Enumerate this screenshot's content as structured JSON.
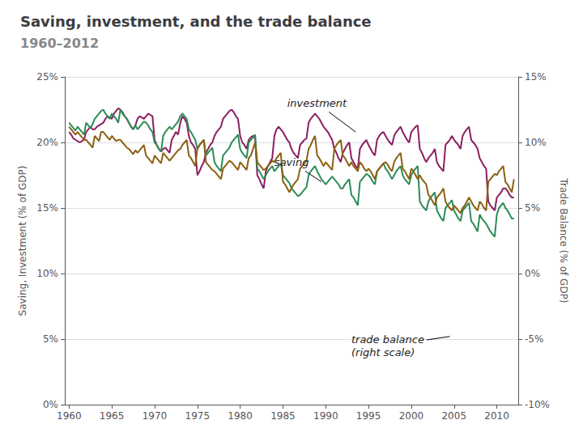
{
  "chart_data": {
    "type": "line",
    "title": "Saving, investment, and the trade balance",
    "subtitle": "1960–2012",
    "ylabel": "Saving, Investment (% of GDP)",
    "y2label": "Trade Balance (% of GDP)",
    "xlim": [
      1959.5,
      2012.5
    ],
    "xticks": [
      1960,
      1965,
      1970,
      1975,
      1980,
      1985,
      1990,
      1995,
      2000,
      2005,
      2010
    ],
    "ylim": [
      0,
      25
    ],
    "yticks": [
      {
        "value": 0,
        "label": "0%"
      },
      {
        "value": 5,
        "label": "5%"
      },
      {
        "value": 10,
        "label": "10%"
      },
      {
        "value": 15,
        "label": "15%"
      },
      {
        "value": 20,
        "label": "20%"
      },
      {
        "value": 25,
        "label": "25%"
      }
    ],
    "y2lim": [
      -10,
      15
    ],
    "y2ticks": [
      {
        "value": -10,
        "label": "-10%"
      },
      {
        "value": -5,
        "label": "-5%"
      },
      {
        "value": 0,
        "label": "0%"
      },
      {
        "value": 5,
        "label": "5%"
      },
      {
        "value": 10,
        "label": "10%"
      },
      {
        "value": 15,
        "label": "15%"
      }
    ],
    "grid": true,
    "annotations": [
      {
        "text": "investment",
        "xy": [
          1993.5,
          20.8
        ],
        "xytext": [
          1985.5,
          23.0
        ]
      },
      {
        "text": "saving",
        "xy": [
          1989.5,
          17.0
        ],
        "xytext": [
          1984.0,
          18.5
        ]
      },
      {
        "text": "trade balance\n(right scale)",
        "xy": [
          2004.5,
          5.2
        ],
        "xytext": [
          1993.0,
          4.5
        ]
      }
    ],
    "x": [
      1960,
      1960.25,
      1960.5,
      1960.75,
      1961,
      1961.25,
      1961.5,
      1961.75,
      1962,
      1962.25,
      1962.5,
      1962.75,
      1963,
      1963.25,
      1963.5,
      1963.75,
      1964,
      1964.25,
      1964.5,
      1964.75,
      1965,
      1965.25,
      1965.5,
      1965.75,
      1966,
      1966.25,
      1966.5,
      1966.75,
      1967,
      1967.25,
      1967.5,
      1967.75,
      1968,
      1968.25,
      1968.5,
      1968.75,
      1969,
      1969.25,
      1969.5,
      1969.75,
      1970,
      1970.25,
      1970.5,
      1970.75,
      1971,
      1971.25,
      1971.5,
      1971.75,
      1972,
      1972.25,
      1972.5,
      1972.75,
      1973,
      1973.25,
      1973.5,
      1973.75,
      1974,
      1974.25,
      1974.5,
      1974.75,
      1975,
      1975.25,
      1975.5,
      1975.75,
      1976,
      1976.25,
      1976.5,
      1976.75,
      1977,
      1977.25,
      1977.5,
      1977.75,
      1978,
      1978.25,
      1978.5,
      1978.75,
      1979,
      1979.25,
      1979.5,
      1979.75,
      1980,
      1980.25,
      1980.5,
      1980.75,
      1981,
      1981.25,
      1981.5,
      1981.75,
      1982,
      1982.25,
      1982.5,
      1982.75,
      1983,
      1983.25,
      1983.5,
      1983.75,
      1984,
      1984.25,
      1984.5,
      1984.75,
      1985,
      1985.25,
      1985.5,
      1985.75,
      1986,
      1986.25,
      1986.5,
      1986.75,
      1987,
      1987.25,
      1987.5,
      1987.75,
      1988,
      1988.25,
      1988.5,
      1988.75,
      1989,
      1989.25,
      1989.5,
      1989.75,
      1990,
      1990.25,
      1990.5,
      1990.75,
      1991,
      1991.25,
      1991.5,
      1991.75,
      1992,
      1992.25,
      1992.5,
      1992.75,
      1993,
      1993.25,
      1993.5,
      1993.75,
      1994,
      1994.25,
      1994.5,
      1994.75,
      1995,
      1995.25,
      1995.5,
      1995.75,
      1996,
      1996.25,
      1996.5,
      1996.75,
      1997,
      1997.25,
      1997.5,
      1997.75,
      1998,
      1998.25,
      1998.5,
      1998.75,
      1999,
      1999.25,
      1999.5,
      1999.75,
      2000,
      2000.25,
      2000.5,
      2000.75,
      2001,
      2001.25,
      2001.5,
      2001.75,
      2002,
      2002.25,
      2002.5,
      2002.75,
      2003,
      2003.25,
      2003.5,
      2003.75,
      2004,
      2004.25,
      2004.5,
      2004.75,
      2005,
      2005.25,
      2005.5,
      2005.75,
      2006,
      2006.25,
      2006.5,
      2006.75,
      2007,
      2007.25,
      2007.5,
      2007.75,
      2008,
      2008.25,
      2008.5,
      2008.75,
      2009,
      2009.25,
      2009.5,
      2009.75,
      2010,
      2010.25,
      2010.5,
      2010.75,
      2011,
      2011.25,
      2011.5,
      2011.75,
      2012
    ],
    "series": [
      {
        "color": "#8B2060",
        "values": [
          20.8,
          20.6,
          20.3,
          20.2,
          20.1,
          20.0,
          20.1,
          20.2,
          20.8,
          21.0,
          21.2,
          21.0,
          21.0,
          21.2,
          21.3,
          21.4,
          21.5,
          21.8,
          22.0,
          21.9,
          21.8,
          22.2,
          22.4,
          22.6,
          22.5,
          22.3,
          22.0,
          21.8,
          21.5,
          21.2,
          21.0,
          21.3,
          21.8,
          22.0,
          21.9,
          21.8,
          22.0,
          22.2,
          22.1,
          22.0,
          20.2,
          19.8,
          19.5,
          19.3,
          19.5,
          19.6,
          19.4,
          19.2,
          20.2,
          20.5,
          20.8,
          20.6,
          21.5,
          22.0,
          21.8,
          21.5,
          20.5,
          20.0,
          19.8,
          19.5,
          17.5,
          17.8,
          18.2,
          18.5,
          19.2,
          19.5,
          19.8,
          20.0,
          20.5,
          20.8,
          21.0,
          21.2,
          21.8,
          22.0,
          22.2,
          22.4,
          22.5,
          22.3,
          22.0,
          21.8,
          20.5,
          20.0,
          19.8,
          19.5,
          20.2,
          20.4,
          20.5,
          20.3,
          17.5,
          17.2,
          16.8,
          16.5,
          17.8,
          18.2,
          18.5,
          18.8,
          20.5,
          21.0,
          21.2,
          21.0,
          20.8,
          20.5,
          20.2,
          20.0,
          19.5,
          19.2,
          19.0,
          18.8,
          19.8,
          20.0,
          20.2,
          20.3,
          21.5,
          21.8,
          22.0,
          22.2,
          22.0,
          21.8,
          21.5,
          21.2,
          21.0,
          20.8,
          20.5,
          20.2,
          19.5,
          19.2,
          18.8,
          18.5,
          19.2,
          19.5,
          19.8,
          20.0,
          18.8,
          18.5,
          18.2,
          18.0,
          19.5,
          19.8,
          20.0,
          20.2,
          19.8,
          19.5,
          19.2,
          19.0,
          20.2,
          20.5,
          20.7,
          20.8,
          20.5,
          20.2,
          20.0,
          19.8,
          20.5,
          20.8,
          21.0,
          21.2,
          20.8,
          20.5,
          20.2,
          20.0,
          20.8,
          21.0,
          21.2,
          21.3,
          19.5,
          19.2,
          18.8,
          18.5,
          18.8,
          19.0,
          19.2,
          19.5,
          18.5,
          18.2,
          18.0,
          17.8,
          19.8,
          20.0,
          20.2,
          20.5,
          20.2,
          20.0,
          19.8,
          19.5,
          20.5,
          20.8,
          21.0,
          21.2,
          20.2,
          20.0,
          19.8,
          19.5,
          18.8,
          18.5,
          18.2,
          18.0,
          15.5,
          15.2,
          15.0,
          14.8,
          15.8,
          16.0,
          16.2,
          16.5,
          16.5,
          16.3,
          16.0,
          15.8,
          15.8
        ]
      },
      {
        "color": "#2E8B57",
        "values": [
          21.5,
          21.3,
          21.1,
          20.9,
          21.2,
          21.0,
          20.8,
          20.6,
          21.5,
          21.3,
          21.1,
          21.4,
          21.8,
          22.0,
          22.2,
          22.4,
          22.5,
          22.2,
          22.0,
          21.8,
          22.2,
          22.0,
          21.8,
          21.5,
          22.5,
          22.2,
          22.0,
          21.8,
          21.5,
          21.2,
          21.0,
          21.3,
          21.0,
          21.2,
          21.4,
          21.6,
          21.5,
          21.3,
          21.0,
          20.8,
          20.0,
          19.8,
          19.5,
          19.3,
          20.5,
          20.8,
          21.0,
          21.2,
          21.0,
          21.2,
          21.4,
          21.6,
          22.0,
          22.2,
          22.0,
          21.8,
          21.0,
          20.8,
          20.5,
          20.2,
          19.5,
          19.8,
          20.0,
          20.2,
          19.0,
          19.2,
          19.4,
          19.6,
          18.5,
          18.2,
          18.0,
          17.8,
          19.0,
          19.2,
          19.4,
          19.6,
          20.0,
          20.2,
          20.4,
          20.6,
          19.5,
          19.2,
          19.0,
          18.8,
          20.0,
          20.2,
          20.4,
          20.6,
          18.0,
          17.8,
          17.5,
          17.2,
          17.5,
          17.8,
          18.0,
          18.2,
          17.8,
          18.0,
          18.2,
          18.4,
          17.5,
          17.3,
          17.1,
          16.9,
          16.5,
          16.3,
          16.1,
          15.9,
          16.0,
          16.2,
          16.4,
          16.6,
          17.5,
          17.8,
          18.0,
          18.2,
          17.8,
          17.5,
          17.2,
          17.0,
          16.8,
          17.0,
          17.2,
          17.4,
          17.2,
          17.0,
          16.8,
          16.5,
          16.5,
          16.8,
          17.0,
          17.2,
          16.0,
          15.8,
          15.5,
          15.2,
          17.0,
          17.2,
          17.4,
          17.6,
          17.5,
          17.3,
          17.0,
          16.8,
          17.8,
          18.0,
          18.2,
          18.4,
          18.0,
          17.8,
          17.5,
          17.2,
          17.5,
          17.8,
          18.0,
          18.2,
          17.5,
          17.2,
          17.0,
          16.8,
          17.5,
          17.8,
          18.0,
          18.2,
          15.5,
          15.2,
          15.0,
          14.8,
          15.5,
          15.8,
          16.0,
          16.2,
          14.8,
          14.5,
          14.2,
          14.0,
          15.0,
          15.2,
          15.4,
          15.6,
          14.8,
          14.5,
          14.2,
          14.0,
          14.8,
          15.0,
          15.2,
          15.4,
          14.0,
          13.8,
          13.5,
          13.2,
          14.5,
          14.2,
          14.0,
          13.8,
          13.5,
          13.2,
          13.0,
          12.8,
          14.5,
          15.0,
          15.2,
          15.4,
          15.0,
          14.8,
          14.5,
          14.2,
          14.2
        ]
      },
      {
        "color": "#8B6010",
        "axis": "y2",
        "values": [
          11.2,
          11.0,
          10.8,
          10.6,
          10.8,
          10.6,
          10.4,
          10.2,
          10.2,
          10.0,
          9.8,
          9.6,
          10.5,
          10.3,
          10.1,
          10.8,
          10.8,
          10.6,
          10.4,
          10.2,
          10.5,
          10.3,
          10.1,
          10.2,
          10.2,
          10.0,
          9.8,
          9.6,
          9.5,
          9.3,
          9.1,
          9.4,
          9.2,
          9.4,
          9.6,
          9.8,
          9.0,
          8.8,
          8.6,
          8.4,
          9.0,
          8.8,
          8.6,
          8.4,
          9.2,
          9.0,
          8.8,
          8.6,
          8.8,
          9.0,
          9.2,
          9.4,
          9.5,
          9.8,
          10.0,
          10.2,
          9.0,
          8.8,
          8.5,
          8.2,
          9.5,
          9.8,
          10.0,
          10.2,
          8.5,
          8.3,
          8.1,
          7.9,
          7.8,
          7.6,
          7.4,
          7.2,
          8.0,
          8.2,
          8.4,
          8.6,
          8.5,
          8.3,
          8.1,
          7.9,
          8.5,
          8.3,
          8.1,
          7.9,
          8.8,
          9.0,
          9.5,
          10.0,
          8.5,
          8.3,
          8.1,
          7.9,
          8.0,
          8.2,
          8.4,
          8.6,
          8.5,
          8.8,
          9.0,
          9.2,
          7.0,
          6.8,
          6.5,
          6.2,
          6.5,
          6.8,
          7.0,
          7.2,
          8.0,
          8.2,
          8.4,
          8.6,
          9.5,
          9.8,
          10.2,
          10.5,
          9.0,
          8.8,
          8.5,
          8.2,
          8.5,
          8.3,
          8.1,
          7.9,
          9.5,
          9.8,
          10.0,
          10.2,
          9.0,
          8.8,
          8.5,
          8.2,
          8.5,
          8.2,
          8.0,
          7.8,
          8.5,
          8.3,
          8.0,
          7.8,
          8.0,
          7.8,
          7.5,
          7.2,
          7.8,
          8.0,
          8.2,
          8.4,
          8.5,
          8.3,
          8.0,
          7.8,
          8.5,
          8.8,
          9.0,
          9.2,
          8.0,
          7.8,
          7.5,
          7.2,
          8.0,
          7.8,
          7.5,
          7.2,
          7.5,
          7.2,
          7.0,
          6.8,
          6.0,
          5.8,
          5.5,
          5.2,
          5.8,
          6.0,
          6.2,
          6.5,
          5.5,
          5.2,
          5.0,
          4.8,
          5.2,
          5.0,
          4.8,
          4.6,
          5.0,
          5.2,
          5.5,
          5.8,
          5.5,
          5.2,
          5.0,
          4.8,
          5.5,
          5.3,
          5.0,
          4.8,
          7.0,
          7.2,
          7.4,
          7.6,
          7.5,
          7.8,
          8.0,
          8.2,
          7.0,
          6.8,
          6.5,
          6.2,
          7.2
        ]
      }
    ]
  }
}
